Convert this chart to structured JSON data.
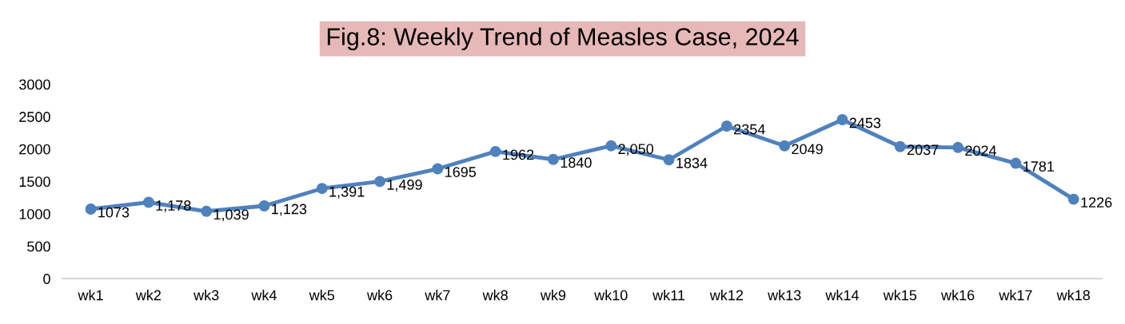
{
  "chart_data": {
    "type": "line",
    "title": "Fig.8: Weekly Trend of Measles Case, 2024",
    "categories": [
      "wk1",
      "wk2",
      "wk3",
      "wk4",
      "wk5",
      "wk6",
      "wk7",
      "wk8",
      "wk9",
      "wk10",
      "wk11",
      "wk12",
      "wk13",
      "wk14",
      "wk15",
      "wk16",
      "wk17",
      "wk18"
    ],
    "series": [
      {
        "color": "#4f81bd",
        "values": [
          1073,
          1178,
          1039,
          1123,
          1391,
          1499,
          1695,
          1962,
          1840,
          2050,
          1834,
          2354,
          2049,
          2453,
          2037,
          2024,
          1781,
          1226
        ],
        "value_labels": [
          "1073",
          "1,178",
          "1,039",
          "1,123",
          "1,391",
          "1,499",
          "1695",
          "1962",
          "1840",
          "2,050",
          "1834",
          "2354",
          "2049",
          "2453",
          "2037",
          "2024",
          "1781",
          "1226"
        ]
      }
    ],
    "ylim": [
      0,
      3000
    ],
    "yticks": [
      0,
      500,
      1000,
      1500,
      2000,
      2500,
      3000
    ],
    "grid": false,
    "legend": false,
    "marker": "circle",
    "line_style": "solid"
  }
}
